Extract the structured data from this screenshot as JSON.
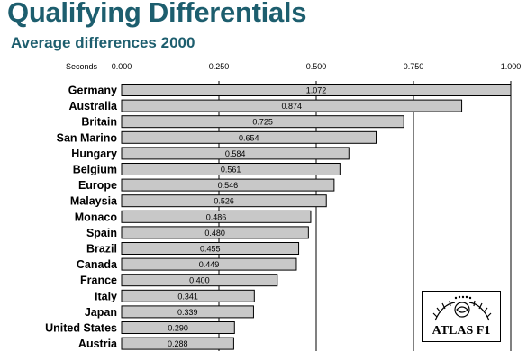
{
  "header": {
    "title": "Qualifying Differentials",
    "subtitle": "Average differences 2000"
  },
  "logo": {
    "text": "ATLAS F1"
  },
  "colors": {
    "title": "#1d5e6e",
    "bar_fill": "#c8c8c8",
    "bar_stroke": "#000000",
    "grid": "#000000"
  },
  "chart_data": {
    "type": "bar",
    "orientation": "horizontal",
    "title": "Qualifying Differentials",
    "subtitle": "Average differences 2000",
    "xlabel": "Seconds",
    "xlim": [
      0,
      1
    ],
    "xticks": [
      0,
      0.25,
      0.5,
      0.75,
      1
    ],
    "xtick_labels": [
      "0.000",
      "0.250",
      "0.500",
      "0.750",
      "1.000"
    ],
    "axis_position": "top",
    "grid": true,
    "categories": [
      "Germany",
      "Australia",
      "Britain",
      "San Marino",
      "Hungary",
      "Belgium",
      "Europe",
      "Malaysia",
      "Monaco",
      "Spain",
      "Brazil",
      "Canada",
      "France",
      "Italy",
      "Japan",
      "United States",
      "Austria"
    ],
    "values": [
      1.072,
      0.874,
      0.725,
      0.654,
      0.584,
      0.561,
      0.546,
      0.526,
      0.486,
      0.48,
      0.455,
      0.449,
      0.4,
      0.341,
      0.339,
      0.29,
      0.288
    ],
    "value_labels": [
      "1.072",
      "0.874",
      "0.725",
      "0.654",
      "0.584",
      "0.561",
      "0.546",
      "0.526",
      "0.486",
      "0.480",
      "0.455",
      "0.449",
      "0.400",
      "0.341",
      "0.339",
      "0.290",
      "0.288"
    ]
  }
}
